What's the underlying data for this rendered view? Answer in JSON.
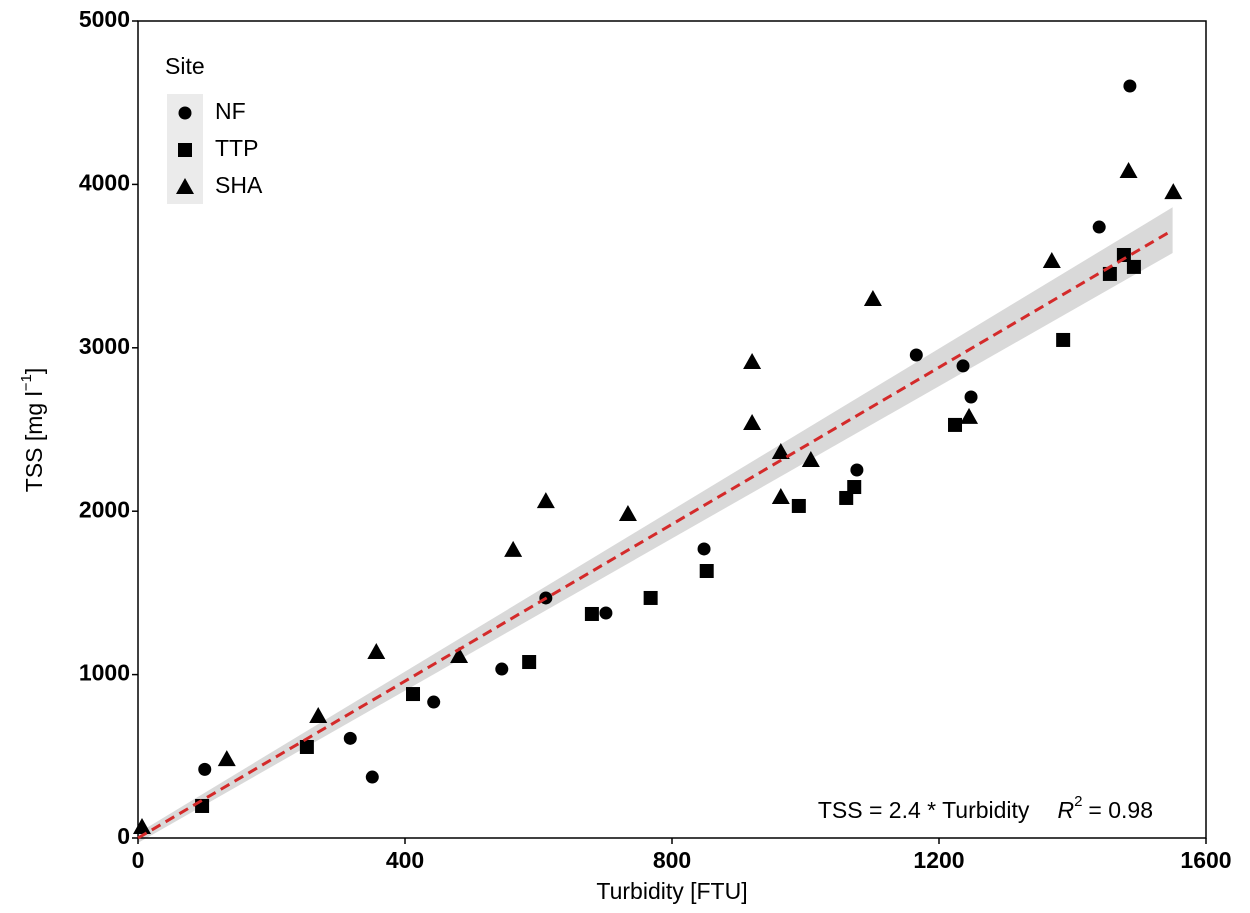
{
  "chart_data": {
    "type": "scatter",
    "xlabel": "Turbidity [FTU]",
    "ylabel": {
      "text": "TSS [mg  l",
      "exponent": "−1",
      "close": "]"
    },
    "xlim": [
      0,
      1600
    ],
    "ylim": [
      0,
      5000
    ],
    "xticks": [
      0,
      400,
      800,
      1200,
      1600
    ],
    "yticks": [
      0,
      1000,
      2000,
      3000,
      4000,
      5000
    ],
    "legend_title": "Site",
    "legend_position": "upper left",
    "series": [
      {
        "name": "NF",
        "marker": "circle",
        "color": "#000000",
        "x": [
          100,
          318,
          351,
          443,
          545,
          611,
          701,
          848,
          1077,
          1166,
          1236,
          1248,
          1440,
          1486
        ],
        "values": [
          420,
          610,
          373,
          832,
          1034,
          1469,
          1377,
          1769,
          2252,
          2956,
          2889,
          2699,
          3739,
          4602
        ]
      },
      {
        "name": "TTP",
        "marker": "square",
        "color": "#000000",
        "x": [
          96,
          253,
          412,
          586,
          680,
          768,
          852,
          990,
          1061,
          1073,
          1224,
          1386,
          1456,
          1477,
          1492
        ],
        "values": [
          196,
          557,
          881,
          1077,
          1371,
          1469,
          1634,
          2032,
          2081,
          2148,
          2528,
          3048,
          3452,
          3568,
          3495
        ]
      },
      {
        "name": "SHA",
        "marker": "triangle",
        "color": "#000000",
        "x": [
          6,
          133,
          270,
          357,
          481,
          562,
          611,
          734,
          920,
          920,
          963,
          963,
          1008,
          1101,
          1245,
          1369,
          1484,
          1551
        ],
        "values": [
          67,
          483,
          747,
          1138,
          1114,
          1763,
          2062,
          1983,
          2913,
          2540,
          2362,
          2087,
          2313,
          3299,
          2577,
          3531,
          4082,
          3953
        ]
      }
    ],
    "fit": {
      "color": "#d42a2a",
      "band_color": "#d9d9d9",
      "x": [
        0,
        1550
      ],
      "values": [
        0,
        3720
      ],
      "lower": [
        -30,
        3580
      ],
      "upper": [
        30,
        3860
      ]
    },
    "annotation": {
      "equation": "TSS = 2.4 * Turbidity",
      "r2_symbol": "R",
      "r2_exponent": "2",
      "r2_value": "= 0.98"
    }
  }
}
